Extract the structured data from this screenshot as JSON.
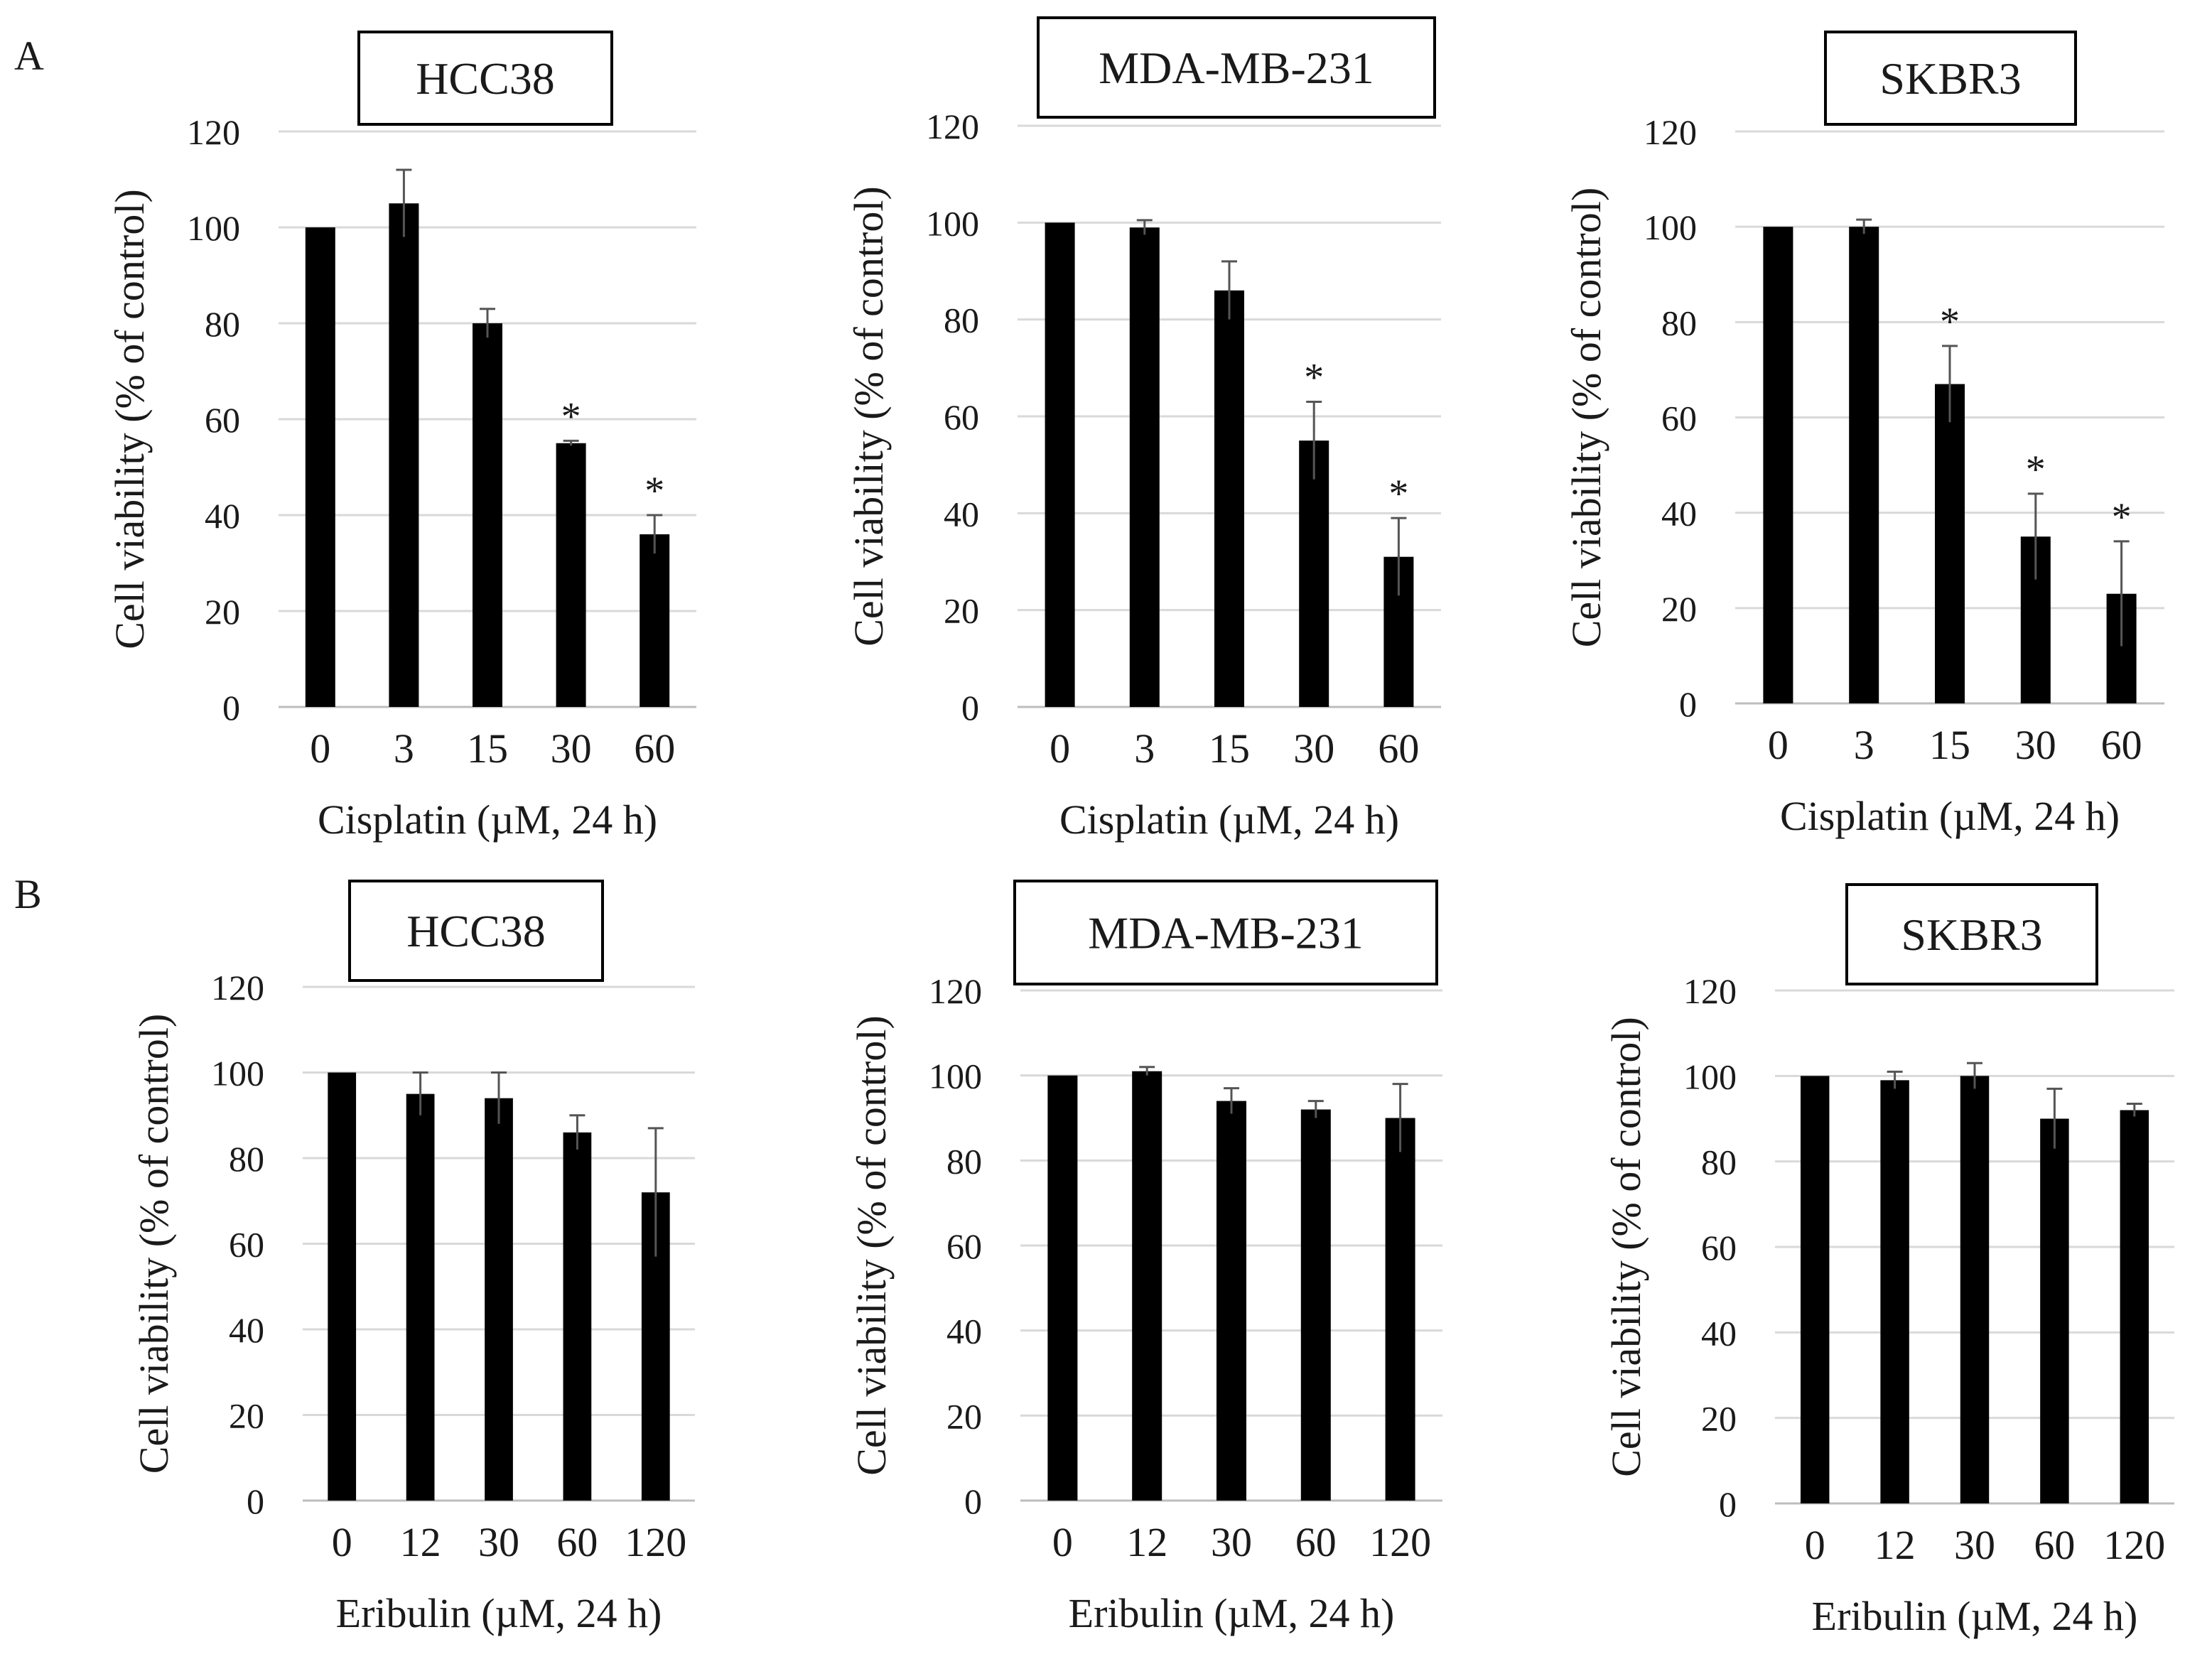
{
  "figure": {
    "panel_labels": [
      "A",
      "B"
    ],
    "ylabel": "Cell viability (% of control)",
    "significance_marker": "*"
  },
  "chart_data": [
    {
      "type": "bar",
      "panel": "A",
      "title": "HCC38",
      "categories": [
        "0",
        "3",
        "15",
        "30",
        "60"
      ],
      "values": [
        100,
        105,
        80,
        55,
        36
      ],
      "errors": [
        0,
        7,
        3,
        0.5,
        4
      ],
      "significant": [
        false,
        false,
        false,
        true,
        true
      ],
      "xlabel": "Cisplatin (µM, 24 h)",
      "ylabel": "Cell viability (% of control)",
      "ylim": [
        0,
        120
      ],
      "yticks": [
        0,
        20,
        40,
        60,
        80,
        100,
        120
      ],
      "grid": true
    },
    {
      "type": "bar",
      "panel": "A",
      "title": "MDA-MB-231",
      "categories": [
        "0",
        "3",
        "15",
        "30",
        "60"
      ],
      "values": [
        100,
        99,
        86,
        55,
        31
      ],
      "errors": [
        0,
        1.5,
        6,
        8,
        8
      ],
      "significant": [
        false,
        false,
        false,
        true,
        true
      ],
      "xlabel": "Cisplatin (µM, 24 h)",
      "ylabel": "Cell viability (% of control)",
      "ylim": [
        0,
        120
      ],
      "yticks": [
        0,
        20,
        40,
        60,
        80,
        100,
        120
      ],
      "grid": true
    },
    {
      "type": "bar",
      "panel": "A",
      "title": "SKBR3",
      "categories": [
        "0",
        "3",
        "15",
        "30",
        "60"
      ],
      "values": [
        100,
        100,
        67,
        35,
        23
      ],
      "errors": [
        0,
        1.5,
        8,
        9,
        11
      ],
      "significant": [
        false,
        false,
        true,
        true,
        true
      ],
      "xlabel": "Cisplatin (µM, 24 h)",
      "ylabel": "Cell viability (% of control)",
      "ylim": [
        0,
        120
      ],
      "yticks": [
        0,
        20,
        40,
        60,
        80,
        100,
        120
      ],
      "grid": true
    },
    {
      "type": "bar",
      "panel": "B",
      "title": "HCC38",
      "categories": [
        "0",
        "12",
        "30",
        "60",
        "120"
      ],
      "values": [
        100,
        95,
        94,
        86,
        72
      ],
      "errors": [
        0,
        5,
        6,
        4,
        15
      ],
      "significant": [
        false,
        false,
        false,
        false,
        false
      ],
      "xlabel": "Eribulin (µM, 24 h)",
      "ylabel": "Cell viability (% of control)",
      "ylim": [
        0,
        120
      ],
      "yticks": [
        0,
        20,
        40,
        60,
        80,
        100,
        120
      ],
      "grid": true
    },
    {
      "type": "bar",
      "panel": "B",
      "title": "MDA-MB-231",
      "categories": [
        "0",
        "12",
        "30",
        "60",
        "120"
      ],
      "values": [
        100,
        101,
        94,
        92,
        90
      ],
      "errors": [
        0,
        1,
        3,
        2,
        8
      ],
      "significant": [
        false,
        false,
        false,
        false,
        false
      ],
      "xlabel": "Eribulin (µM, 24 h)",
      "ylabel": "Cell viability (% of control)",
      "ylim": [
        0,
        120
      ],
      "yticks": [
        0,
        20,
        40,
        60,
        80,
        100,
        120
      ],
      "grid": true
    },
    {
      "type": "bar",
      "panel": "B",
      "title": "SKBR3",
      "categories": [
        "0",
        "12",
        "30",
        "60",
        "120"
      ],
      "values": [
        100,
        99,
        100,
        90,
        92
      ],
      "errors": [
        0,
        2,
        3,
        7,
        1.5
      ],
      "significant": [
        false,
        false,
        false,
        false,
        false
      ],
      "xlabel": "Eribulin (µM, 24 h)",
      "ylabel": "Cell viability (% of control)",
      "ylim": [
        0,
        120
      ],
      "yticks": [
        0,
        20,
        40,
        60,
        80,
        100,
        120
      ],
      "grid": true
    }
  ]
}
